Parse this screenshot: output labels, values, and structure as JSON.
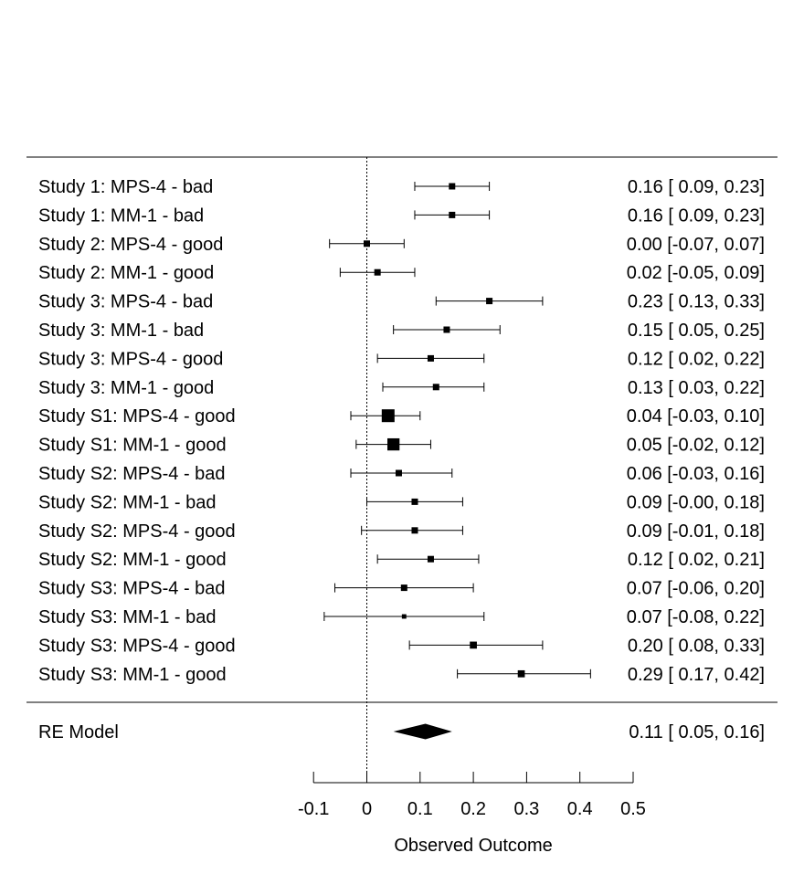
{
  "chart_data": {
    "type": "forest",
    "xlabel": "Observed Outcome",
    "xlim": [
      -0.1,
      0.5
    ],
    "xticks": [
      -0.1,
      0,
      0.1,
      0.2,
      0.3,
      0.4,
      0.5
    ],
    "xtick_labels": [
      "-0.1",
      "0",
      "0.1",
      "0.2",
      "0.3",
      "0.4",
      "0.5"
    ],
    "reference_line": 0,
    "studies": [
      {
        "label": "Study 1: MPS-4 - bad",
        "estimate": 0.16,
        "lower": 0.09,
        "upper": 0.23,
        "text": "0.16 [ 0.09, 0.23]",
        "weight": 1.0
      },
      {
        "label": "Study 1: MM-1 - bad",
        "estimate": 0.16,
        "lower": 0.09,
        "upper": 0.23,
        "text": "0.16 [ 0.09, 0.23]",
        "weight": 1.0
      },
      {
        "label": "Study 2: MPS-4 - good",
        "estimate": 0.0,
        "lower": -0.07,
        "upper": 0.07,
        "text": "0.00 [-0.07, 0.07]",
        "weight": 1.0
      },
      {
        "label": "Study 2: MM-1 - good",
        "estimate": 0.02,
        "lower": -0.05,
        "upper": 0.09,
        "text": "0.02 [-0.05, 0.09]",
        "weight": 1.0
      },
      {
        "label": "Study 3: MPS-4 - bad",
        "estimate": 0.23,
        "lower": 0.13,
        "upper": 0.33,
        "text": "0.23 [ 0.13, 0.33]",
        "weight": 1.0
      },
      {
        "label": "Study 3: MM-1 - bad",
        "estimate": 0.15,
        "lower": 0.05,
        "upper": 0.25,
        "text": "0.15 [ 0.05, 0.25]",
        "weight": 1.0
      },
      {
        "label": "Study 3: MPS-4 - good",
        "estimate": 0.12,
        "lower": 0.02,
        "upper": 0.22,
        "text": "0.12 [ 0.02, 0.22]",
        "weight": 1.0
      },
      {
        "label": "Study 3: MM-1 - good",
        "estimate": 0.13,
        "lower": 0.03,
        "upper": 0.22,
        "text": "0.13 [ 0.03, 0.22]",
        "weight": 1.0
      },
      {
        "label": "Study S1: MPS-4 - good",
        "estimate": 0.04,
        "lower": -0.03,
        "upper": 0.1,
        "text": "0.04 [-0.03, 0.10]",
        "weight": 2.0
      },
      {
        "label": "Study S1: MM-1 - good",
        "estimate": 0.05,
        "lower": -0.02,
        "upper": 0.12,
        "text": "0.05 [-0.02, 0.12]",
        "weight": 1.9
      },
      {
        "label": "Study S2: MPS-4 - bad",
        "estimate": 0.06,
        "lower": -0.03,
        "upper": 0.16,
        "text": "0.06 [-0.03, 0.16]",
        "weight": 1.0
      },
      {
        "label": "Study S2: MM-1 - bad",
        "estimate": 0.09,
        "lower": -0.0,
        "upper": 0.18,
        "text": "0.09 [-0.00, 0.18]",
        "weight": 1.0
      },
      {
        "label": "Study S2: MPS-4 - good",
        "estimate": 0.09,
        "lower": -0.01,
        "upper": 0.18,
        "text": "0.09 [-0.01, 0.18]",
        "weight": 1.0
      },
      {
        "label": "Study S2: MM-1 - good",
        "estimate": 0.12,
        "lower": 0.02,
        "upper": 0.21,
        "text": "0.12 [ 0.02, 0.21]",
        "weight": 1.0
      },
      {
        "label": "Study S3: MPS-4 - bad",
        "estimate": 0.07,
        "lower": -0.06,
        "upper": 0.2,
        "text": "0.07 [-0.06, 0.20]",
        "weight": 1.0
      },
      {
        "label": "Study S3: MM-1 - bad",
        "estimate": 0.07,
        "lower": -0.08,
        "upper": 0.22,
        "text": "0.07 [-0.08, 0.22]",
        "weight": 0.7
      },
      {
        "label": "Study S3: MPS-4 - good",
        "estimate": 0.2,
        "lower": 0.08,
        "upper": 0.33,
        "text": "0.20 [ 0.08, 0.33]",
        "weight": 1.1
      },
      {
        "label": "Study S3: MM-1 - good",
        "estimate": 0.29,
        "lower": 0.17,
        "upper": 0.42,
        "text": "0.29 [ 0.17, 0.42]",
        "weight": 1.1
      }
    ],
    "summary": {
      "label": "RE Model",
      "estimate": 0.11,
      "lower": 0.05,
      "upper": 0.16,
      "text": "0.11 [ 0.05, 0.16]"
    }
  }
}
